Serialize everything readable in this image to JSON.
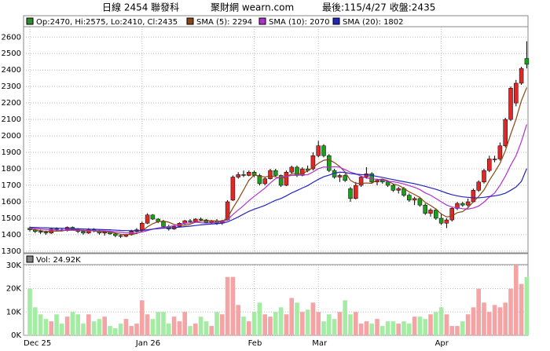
{
  "header": {
    "title": "日線 2454 聯發科",
    "site": "聚財網 wearn.com",
    "last": "最後:115/4/27 收盤:2435"
  },
  "chart_data": {
    "type": "candlestick",
    "ohlc_label": "Op:2470, Hi:2575, Lo:2410, Cl:2435",
    "ohlc_color": "#2e8b2e",
    "categories": [
      "Dec 25",
      null,
      null,
      null,
      null,
      null,
      null,
      null,
      null,
      null,
      null,
      null,
      null,
      null,
      null,
      null,
      null,
      null,
      null,
      null,
      null,
      "Jan 26",
      null,
      null,
      null,
      null,
      null,
      null,
      null,
      null,
      null,
      null,
      null,
      null,
      null,
      null,
      null,
      null,
      null,
      null,
      null,
      null,
      "Feb",
      null,
      null,
      null,
      null,
      null,
      null,
      null,
      null,
      null,
      null,
      null,
      "Mar",
      null,
      null,
      null,
      null,
      null,
      null,
      null,
      null,
      null,
      null,
      null,
      null,
      null,
      null,
      null,
      null,
      null,
      null,
      null,
      null,
      null,
      null,
      "Apr",
      null,
      null,
      null,
      null,
      null,
      null,
      null,
      null,
      null,
      null,
      null,
      null,
      null,
      null,
      null,
      null
    ],
    "open": [
      1440,
      1430,
      1420,
      1415,
      1410,
      1435,
      1430,
      1425,
      1445,
      1430,
      1420,
      1410,
      1430,
      1425,
      1410,
      1415,
      1405,
      1395,
      1390,
      1400,
      1420,
      1430,
      1470,
      1520,
      1495,
      1480,
      1450,
      1435,
      1450,
      1470,
      1485,
      1480,
      1495,
      1490,
      1475,
      1485,
      1470,
      1490,
      1610,
      1750,
      1765,
      1760,
      1780,
      1760,
      1710,
      1740,
      1790,
      1760,
      1700,
      1780,
      1810,
      1760,
      1800,
      1800,
      1880,
      1940,
      1880,
      1790,
      1750,
      1760,
      1680,
      1620,
      1700,
      1750,
      1770,
      1720,
      1730,
      1720,
      1700,
      1670,
      1680,
      1640,
      1610,
      1620,
      1580,
      1530,
      1550,
      1500,
      1470,
      1490,
      1560,
      1590,
      1580,
      1600,
      1670,
      1720,
      1790,
      1860,
      1860,
      1940,
      2100,
      2200,
      2320,
      2470
    ],
    "high": [
      1450,
      1440,
      1430,
      1425,
      1440,
      1445,
      1440,
      1450,
      1450,
      1440,
      1430,
      1440,
      1440,
      1430,
      1420,
      1425,
      1410,
      1400,
      1405,
      1430,
      1440,
      1480,
      1530,
      1525,
      1500,
      1490,
      1460,
      1455,
      1475,
      1490,
      1495,
      1500,
      1505,
      1495,
      1490,
      1495,
      1490,
      1610,
      1760,
      1780,
      1790,
      1790,
      1790,
      1770,
      1750,
      1800,
      1800,
      1765,
      1790,
      1820,
      1820,
      1810,
      1820,
      1900,
      1970,
      1950,
      1890,
      1800,
      1770,
      1770,
      1690,
      1720,
      1760,
      1810,
      1780,
      1740,
      1740,
      1730,
      1710,
      1690,
      1690,
      1650,
      1630,
      1630,
      1590,
      1560,
      1560,
      1530,
      1500,
      1570,
      1600,
      1600,
      1620,
      1680,
      1730,
      1800,
      1880,
      1880,
      1960,
      2110,
      2300,
      2340,
      2420,
      2575
    ],
    "low": [
      1420,
      1410,
      1405,
      1400,
      1405,
      1420,
      1420,
      1420,
      1425,
      1410,
      1400,
      1405,
      1415,
      1400,
      1395,
      1400,
      1385,
      1380,
      1385,
      1395,
      1415,
      1425,
      1465,
      1490,
      1470,
      1440,
      1425,
      1430,
      1445,
      1460,
      1470,
      1475,
      1480,
      1470,
      1465,
      1460,
      1460,
      1485,
      1605,
      1740,
      1750,
      1755,
      1750,
      1700,
      1700,
      1735,
      1750,
      1690,
      1695,
      1770,
      1750,
      1755,
      1780,
      1790,
      1870,
      1870,
      1780,
      1740,
      1720,
      1720,
      1600,
      1615,
      1690,
      1740,
      1710,
      1700,
      1710,
      1690,
      1660,
      1650,
      1630,
      1600,
      1580,
      1570,
      1520,
      1510,
      1490,
      1460,
      1440,
      1480,
      1550,
      1570,
      1570,
      1595,
      1660,
      1710,
      1780,
      1840,
      1850,
      1930,
      2090,
      2180,
      2310,
      2410
    ],
    "close": [
      1430,
      1420,
      1415,
      1410,
      1435,
      1430,
      1425,
      1445,
      1430,
      1420,
      1410,
      1430,
      1425,
      1410,
      1415,
      1405,
      1395,
      1390,
      1400,
      1420,
      1430,
      1470,
      1520,
      1495,
      1480,
      1450,
      1435,
      1450,
      1470,
      1485,
      1480,
      1495,
      1490,
      1475,
      1485,
      1470,
      1485,
      1600,
      1750,
      1765,
      1760,
      1780,
      1760,
      1710,
      1740,
      1790,
      1760,
      1700,
      1780,
      1810,
      1760,
      1800,
      1790,
      1880,
      1940,
      1880,
      1790,
      1750,
      1760,
      1730,
      1620,
      1700,
      1750,
      1770,
      1720,
      1730,
      1720,
      1700,
      1670,
      1680,
      1640,
      1610,
      1620,
      1580,
      1530,
      1550,
      1500,
      1470,
      1490,
      1560,
      1590,
      1580,
      1600,
      1670,
      1720,
      1790,
      1860,
      1860,
      1940,
      2100,
      2290,
      2320,
      2410,
      2435
    ],
    "up_color": "#e02828",
    "down_color": "#1e9e1e",
    "series": [
      {
        "name": "SMA (5): 2294",
        "color": "#8b4513",
        "values": [
          1435,
          1430,
          1425,
          1420,
          1422,
          1422,
          1423,
          1429,
          1433,
          1430,
          1426,
          1427,
          1423,
          1419,
          1418,
          1417,
          1410,
          1403,
          1401,
          1402,
          1407,
          1422,
          1448,
          1467,
          1479,
          1483,
          1476,
          1462,
          1457,
          1458,
          1464,
          1476,
          1484,
          1485,
          1485,
          1483,
          1481,
          1503,
          1562,
          1614,
          1672,
          1731,
          1763,
          1755,
          1751,
          1756,
          1752,
          1740,
          1754,
          1768,
          1770,
          1770,
          1788,
          1808,
          1834,
          1852,
          1856,
          1838,
          1814,
          1780,
          1730,
          1712,
          1712,
          1714,
          1712,
          1734,
          1738,
          1728,
          1708,
          1700,
          1682,
          1660,
          1644,
          1626,
          1596,
          1578,
          1556,
          1526,
          1508,
          1514,
          1534,
          1540,
          1564,
          1600,
          1632,
          1672,
          1730,
          1780,
          1834,
          1910,
          2010,
          2102,
          2214,
          2294
        ]
      },
      {
        "name": "SMA (10): 2070",
        "color": "#b030d0",
        "values": [
          1440,
          1438,
          1435,
          1432,
          1430,
          1428,
          1427,
          1427,
          1427,
          1426,
          1424,
          1425,
          1425,
          1424,
          1424,
          1421,
          1418,
          1415,
          1412,
          1410,
          1412,
          1416,
          1425,
          1434,
          1441,
          1445,
          1449,
          1455,
          1462,
          1469,
          1473,
          1476,
          1473,
          1471,
          1472,
          1474,
          1478,
          1490,
          1523,
          1550,
          1577,
          1607,
          1633,
          1658,
          1683,
          1714,
          1741,
          1751,
          1754,
          1760,
          1761,
          1763,
          1764,
          1781,
          1801,
          1811,
          1810,
          1813,
          1810,
          1795,
          1780,
          1770,
          1755,
          1744,
          1740,
          1736,
          1733,
          1724,
          1722,
          1716,
          1708,
          1698,
          1688,
          1674,
          1654,
          1640,
          1620,
          1600,
          1580,
          1568,
          1564,
          1558,
          1556,
          1562,
          1574,
          1598,
          1628,
          1654,
          1700,
          1756,
          1822,
          1880,
          1966,
          2070
        ]
      },
      {
        "name": "SMA (20): 1802",
        "color": "#2424c0",
        "values": [
          1445,
          1444,
          1443,
          1442,
          1441,
          1440,
          1439,
          1438,
          1437,
          1436,
          1435,
          1434,
          1433,
          1432,
          1431,
          1430,
          1428,
          1426,
          1425,
          1424,
          1424,
          1426,
          1430,
          1434,
          1437,
          1440,
          1441,
          1443,
          1446,
          1449,
          1452,
          1456,
          1460,
          1463,
          1465,
          1467,
          1470,
          1478,
          1492,
          1508,
          1525,
          1542,
          1555,
          1566,
          1578,
          1594,
          1609,
          1620,
          1636,
          1654,
          1668,
          1684,
          1698,
          1718,
          1736,
          1752,
          1762,
          1774,
          1780,
          1778,
          1772,
          1768,
          1765,
          1764,
          1760,
          1754,
          1748,
          1741,
          1735,
          1728,
          1722,
          1716,
          1710,
          1702,
          1694,
          1685,
          1676,
          1665,
          1653,
          1643,
          1636,
          1630,
          1627,
          1624,
          1624,
          1627,
          1632,
          1636,
          1642,
          1652,
          1670,
          1690,
          1724,
          1802
        ]
      }
    ],
    "ylim": [
      1290,
      2730
    ],
    "yticks": [
      1300,
      1400,
      1500,
      1600,
      1700,
      1800,
      1900,
      2000,
      2100,
      2200,
      2300,
      2400,
      2500,
      2600
    ],
    "grid": true,
    "volume": {
      "label": "Vol: 24.92K",
      "color": "#808080",
      "up_color": "#f4a4a4",
      "down_color": "#a4eca4",
      "values": [
        20,
        12,
        9,
        7,
        6,
        9,
        5,
        8,
        10,
        9,
        5,
        9,
        6,
        7,
        8,
        4,
        3,
        5,
        7,
        4,
        5,
        15,
        9,
        7,
        10,
        10,
        5,
        8,
        6,
        10,
        4,
        5,
        8,
        6,
        4,
        10,
        9,
        25,
        25,
        13,
        8,
        6,
        10,
        14,
        9,
        8,
        10,
        12,
        9,
        16,
        14,
        10,
        11,
        14,
        10,
        6,
        9,
        7,
        10,
        15,
        9,
        10,
        5,
        6,
        5,
        7,
        4,
        6,
        6,
        5,
        6,
        5,
        8,
        8,
        7,
        9,
        10,
        12,
        9,
        4,
        4,
        6,
        9,
        12,
        20,
        14,
        10,
        13,
        12,
        14,
        20,
        30,
        22,
        24.92
      ],
      "ylim": [
        0,
        35
      ],
      "yticks": [
        {
          "value": 0,
          "label": "0K"
        },
        {
          "value": 10,
          "label": "10K"
        },
        {
          "value": 20,
          "label": "20K"
        },
        {
          "value": 30,
          "label": "30K"
        }
      ]
    }
  }
}
